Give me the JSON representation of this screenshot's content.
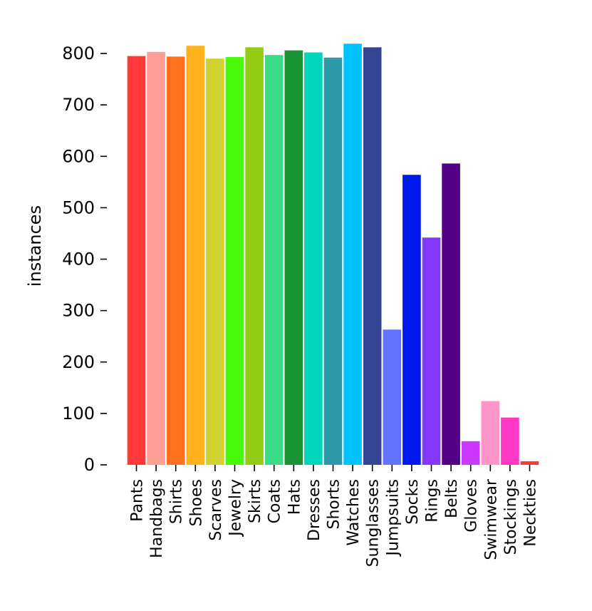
{
  "chart_data": {
    "type": "bar",
    "title": "",
    "xlabel": "",
    "ylabel": "instances",
    "ylim": [
      0,
      800
    ],
    "yticks": [
      0,
      100,
      200,
      300,
      400,
      500,
      600,
      700,
      800
    ],
    "grid": false,
    "categories": [
      "Pants",
      "Handbags",
      "Shirts",
      "Shoes",
      "Scarves",
      "Jewelry",
      "Skirts",
      "Coats",
      "Hats",
      "Dresses",
      "Shorts",
      "Watches",
      "Sunglasses",
      "Jumpsuits",
      "Socks",
      "Rings",
      "Belts",
      "Gloves",
      "Swimwear",
      "Stockings",
      "Neckties"
    ],
    "values": [
      795,
      803,
      794,
      815,
      790,
      793,
      812,
      797,
      806,
      802,
      792,
      819,
      812,
      263,
      564,
      442,
      586,
      46,
      124,
      92,
      7
    ],
    "colors": [
      "#ff3838",
      "#ff9d97",
      "#ff701f",
      "#ffb21d",
      "#cfd231",
      "#48f90a",
      "#92cc17",
      "#3ddb86",
      "#1a9334",
      "#00d4bb",
      "#2c99a8",
      "#00c2ff",
      "#344593",
      "#6473ff",
      "#0018ec",
      "#8438ff",
      "#520085",
      "#cb38ff",
      "#ff95c8",
      "#ff37c7",
      "#ff3838"
    ]
  }
}
